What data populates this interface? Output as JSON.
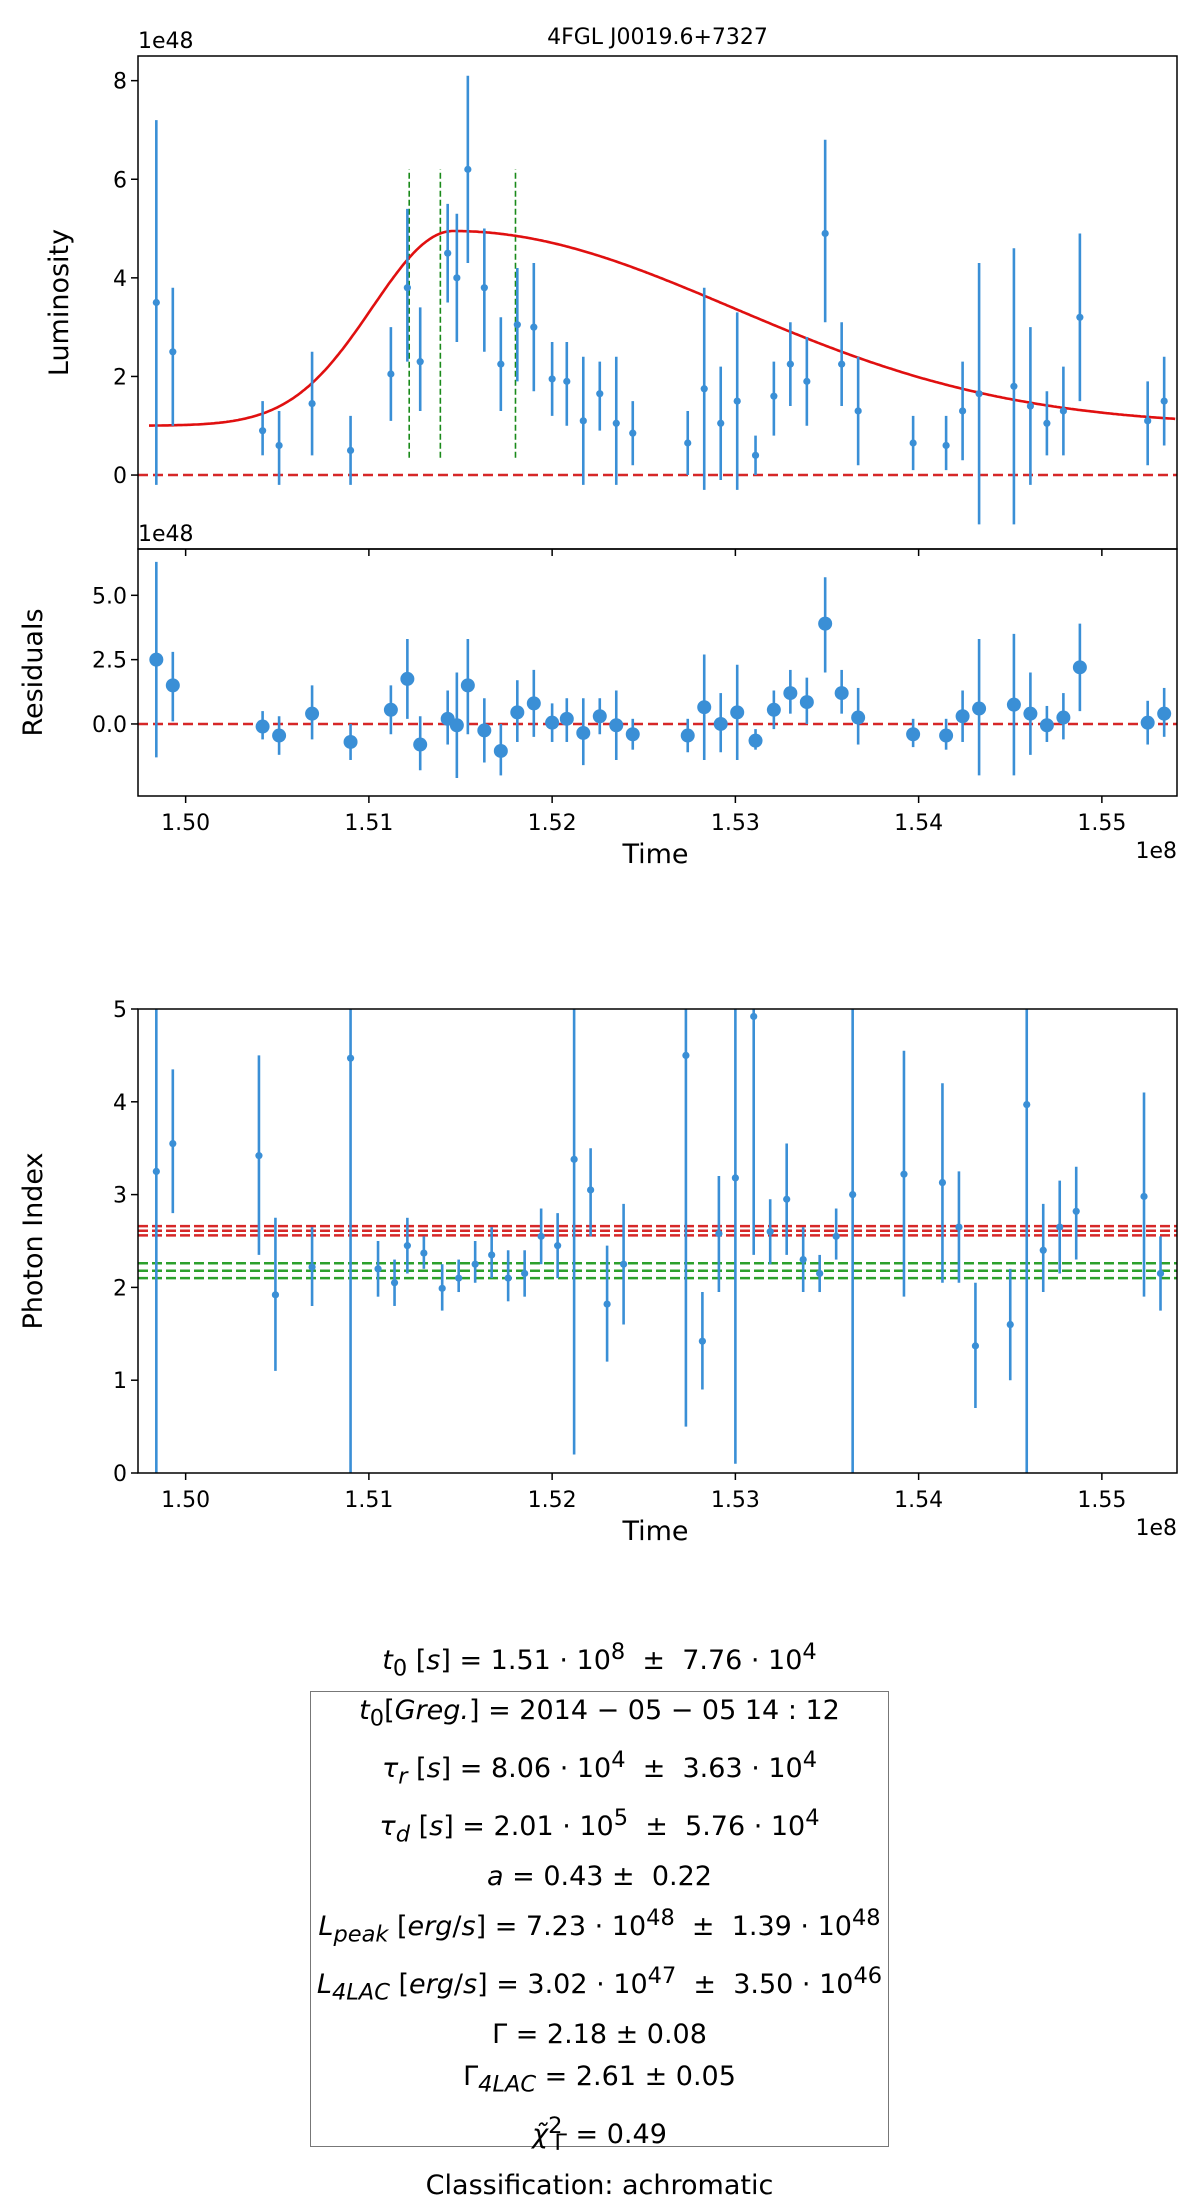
{
  "chart_data": [
    {
      "type": "scatter",
      "panel": "luminosity",
      "title": "4FGL J0019.6+7327",
      "xlabel": "Time",
      "ylabel": "Luminosity",
      "y_offset_label": "1e48",
      "ylim": [
        -1.5,
        8.5
      ],
      "xlim": [
        149740000.0,
        155410000.0
      ],
      "yticks": [
        0,
        2,
        4,
        6,
        8
      ],
      "yticklabels": [
        "0",
        "2",
        "4",
        "6",
        "8"
      ],
      "zero_line": 0,
      "flare_markers_x": [
        1.5122,
        1.5139,
        1.518
      ],
      "model_curve": {
        "name": "fit",
        "baseline": 1.0,
        "peak_time": 1.5146,
        "peak": 4.95,
        "tau_rise": 0.00806,
        "tau_decay": 0.0201,
        "x_start": 1.498,
        "x_end": 1.554
      },
      "points": [
        {
          "x": 1.4984,
          "y": 3.5,
          "lo": -0.2,
          "hi": 7.2
        },
        {
          "x": 1.4993,
          "y": 2.5,
          "lo": 1.0,
          "hi": 3.8
        },
        {
          "x": 1.5042,
          "y": 0.9,
          "lo": 0.4,
          "hi": 1.5
        },
        {
          "x": 1.5051,
          "y": 0.6,
          "lo": -0.2,
          "hi": 1.3
        },
        {
          "x": 1.5069,
          "y": 1.45,
          "lo": 0.4,
          "hi": 2.5
        },
        {
          "x": 1.509,
          "y": 0.5,
          "lo": -0.2,
          "hi": 1.2
        },
        {
          "x": 1.5112,
          "y": 2.05,
          "lo": 1.1,
          "hi": 3.0
        },
        {
          "x": 1.5121,
          "y": 3.8,
          "lo": 2.3,
          "hi": 5.4
        },
        {
          "x": 1.5128,
          "y": 2.3,
          "lo": 1.3,
          "hi": 3.4
        },
        {
          "x": 1.5143,
          "y": 4.5,
          "lo": 3.5,
          "hi": 5.5
        },
        {
          "x": 1.5148,
          "y": 4.0,
          "lo": 2.7,
          "hi": 5.3
        },
        {
          "x": 1.5154,
          "y": 6.2,
          "lo": 4.3,
          "hi": 8.1
        },
        {
          "x": 1.5163,
          "y": 3.8,
          "lo": 2.5,
          "hi": 5.0
        },
        {
          "x": 1.5172,
          "y": 2.25,
          "lo": 1.3,
          "hi": 3.2
        },
        {
          "x": 1.5181,
          "y": 3.05,
          "lo": 1.9,
          "hi": 4.2
        },
        {
          "x": 1.519,
          "y": 3.0,
          "lo": 1.7,
          "hi": 4.3
        },
        {
          "x": 1.52,
          "y": 1.95,
          "lo": 1.2,
          "hi": 2.7
        },
        {
          "x": 1.5208,
          "y": 1.9,
          "lo": 1.0,
          "hi": 2.7
        },
        {
          "x": 1.5217,
          "y": 1.1,
          "lo": -0.2,
          "hi": 2.4
        },
        {
          "x": 1.5226,
          "y": 1.65,
          "lo": 0.9,
          "hi": 2.3
        },
        {
          "x": 1.5235,
          "y": 1.05,
          "lo": -0.2,
          "hi": 2.4
        },
        {
          "x": 1.5244,
          "y": 0.85,
          "lo": 0.2,
          "hi": 1.5
        },
        {
          "x": 1.5274,
          "y": 0.65,
          "lo": 0.0,
          "hi": 1.3
        },
        {
          "x": 1.5283,
          "y": 1.75,
          "lo": -0.3,
          "hi": 3.8
        },
        {
          "x": 1.5292,
          "y": 1.05,
          "lo": -0.1,
          "hi": 2.2
        },
        {
          "x": 1.5301,
          "y": 1.5,
          "lo": -0.3,
          "hi": 3.3
        },
        {
          "x": 1.5311,
          "y": 0.4,
          "lo": 0.0,
          "hi": 0.8
        },
        {
          "x": 1.5321,
          "y": 1.6,
          "lo": 0.8,
          "hi": 2.3
        },
        {
          "x": 1.533,
          "y": 2.25,
          "lo": 1.4,
          "hi": 3.1
        },
        {
          "x": 1.5339,
          "y": 1.9,
          "lo": 1.0,
          "hi": 2.8
        },
        {
          "x": 1.5349,
          "y": 4.9,
          "lo": 3.1,
          "hi": 6.8
        },
        {
          "x": 1.5358,
          "y": 2.25,
          "lo": 1.4,
          "hi": 3.1
        },
        {
          "x": 1.5367,
          "y": 1.3,
          "lo": 0.2,
          "hi": 2.4
        },
        {
          "x": 1.5397,
          "y": 0.65,
          "lo": 0.1,
          "hi": 1.2
        },
        {
          "x": 1.5415,
          "y": 0.6,
          "lo": 0.1,
          "hi": 1.2
        },
        {
          "x": 1.5424,
          "y": 1.3,
          "lo": 0.3,
          "hi": 2.3
        },
        {
          "x": 1.5433,
          "y": 1.65,
          "lo": -1.0,
          "hi": 4.3
        },
        {
          "x": 1.5452,
          "y": 1.8,
          "lo": -1.0,
          "hi": 4.6
        },
        {
          "x": 1.5461,
          "y": 1.4,
          "lo": -0.2,
          "hi": 3.0
        },
        {
          "x": 1.547,
          "y": 1.05,
          "lo": 0.4,
          "hi": 1.7
        },
        {
          "x": 1.5479,
          "y": 1.3,
          "lo": 0.4,
          "hi": 2.2
        },
        {
          "x": 1.5488,
          "y": 3.2,
          "lo": 1.5,
          "hi": 4.9
        },
        {
          "x": 1.5525,
          "y": 1.1,
          "lo": 0.2,
          "hi": 1.9
        },
        {
          "x": 1.5534,
          "y": 1.5,
          "lo": 0.6,
          "hi": 2.4
        }
      ]
    },
    {
      "type": "scatter",
      "panel": "residuals",
      "xlabel": "Time",
      "ylabel": "Residuals",
      "y_offset_label": "1e48",
      "x_offset_label": "1e8",
      "ylim": [
        -2.8,
        6.8
      ],
      "xlim": [
        149740000.0,
        155410000.0
      ],
      "yticks": [
        0,
        2.5,
        5
      ],
      "yticklabels": [
        "0.0",
        "2.5",
        "5.0"
      ],
      "xticks": [
        1.5,
        1.51,
        1.52,
        1.53,
        1.54,
        1.55
      ],
      "xticklabels": [
        "1.50",
        "1.51",
        "1.52",
        "1.53",
        "1.54",
        "1.55"
      ],
      "zero_line": 0,
      "points": [
        {
          "x": 1.4984,
          "y": 2.5,
          "lo": -1.3,
          "hi": 6.3
        },
        {
          "x": 1.4993,
          "y": 1.5,
          "lo": 0.1,
          "hi": 2.8
        },
        {
          "x": 1.5042,
          "y": -0.1,
          "lo": -0.6,
          "hi": 0.5
        },
        {
          "x": 1.5051,
          "y": -0.45,
          "lo": -1.2,
          "hi": 0.3
        },
        {
          "x": 1.5069,
          "y": 0.4,
          "lo": -0.6,
          "hi": 1.5
        },
        {
          "x": 1.509,
          "y": -0.7,
          "lo": -1.4,
          "hi": 0.0
        },
        {
          "x": 1.5112,
          "y": 0.55,
          "lo": -0.4,
          "hi": 1.5
        },
        {
          "x": 1.5121,
          "y": 1.75,
          "lo": 0.2,
          "hi": 3.3
        },
        {
          "x": 1.5128,
          "y": -0.8,
          "lo": -1.8,
          "hi": 0.3
        },
        {
          "x": 1.5143,
          "y": 0.2,
          "lo": -0.8,
          "hi": 1.3
        },
        {
          "x": 1.5148,
          "y": -0.05,
          "lo": -2.1,
          "hi": 2.0
        },
        {
          "x": 1.5154,
          "y": 1.5,
          "lo": -0.4,
          "hi": 3.3
        },
        {
          "x": 1.5163,
          "y": -0.25,
          "lo": -1.5,
          "hi": 1.0
        },
        {
          "x": 1.5172,
          "y": -1.05,
          "lo": -2.0,
          "hi": 0.0
        },
        {
          "x": 1.5181,
          "y": 0.45,
          "lo": -0.7,
          "hi": 1.7
        },
        {
          "x": 1.519,
          "y": 0.8,
          "lo": -0.5,
          "hi": 2.1
        },
        {
          "x": 1.52,
          "y": 0.05,
          "lo": -0.7,
          "hi": 0.8
        },
        {
          "x": 1.5208,
          "y": 0.2,
          "lo": -0.7,
          "hi": 1.0
        },
        {
          "x": 1.5217,
          "y": -0.35,
          "lo": -1.6,
          "hi": 1.0
        },
        {
          "x": 1.5226,
          "y": 0.3,
          "lo": -0.4,
          "hi": 1.0
        },
        {
          "x": 1.5235,
          "y": -0.05,
          "lo": -1.4,
          "hi": 1.3
        },
        {
          "x": 1.5244,
          "y": -0.4,
          "lo": -1.0,
          "hi": 0.2
        },
        {
          "x": 1.5274,
          "y": -0.45,
          "lo": -1.1,
          "hi": 0.2
        },
        {
          "x": 1.5283,
          "y": 0.65,
          "lo": -1.4,
          "hi": 2.7
        },
        {
          "x": 1.5292,
          "y": 0.0,
          "lo": -1.1,
          "hi": 1.2
        },
        {
          "x": 1.5301,
          "y": 0.45,
          "lo": -1.4,
          "hi": 2.3
        },
        {
          "x": 1.5311,
          "y": -0.65,
          "lo": -1.0,
          "hi": -0.2
        },
        {
          "x": 1.5321,
          "y": 0.55,
          "lo": -0.2,
          "hi": 1.3
        },
        {
          "x": 1.533,
          "y": 1.2,
          "lo": 0.4,
          "hi": 2.1
        },
        {
          "x": 1.5339,
          "y": 0.85,
          "lo": 0.0,
          "hi": 1.8
        },
        {
          "x": 1.5349,
          "y": 3.9,
          "lo": 2.0,
          "hi": 5.7
        },
        {
          "x": 1.5358,
          "y": 1.2,
          "lo": 0.4,
          "hi": 2.1
        },
        {
          "x": 1.5367,
          "y": 0.25,
          "lo": -0.8,
          "hi": 1.4
        },
        {
          "x": 1.5397,
          "y": -0.4,
          "lo": -0.9,
          "hi": 0.2
        },
        {
          "x": 1.5415,
          "y": -0.45,
          "lo": -1.0,
          "hi": 0.2
        },
        {
          "x": 1.5424,
          "y": 0.3,
          "lo": -0.7,
          "hi": 1.3
        },
        {
          "x": 1.5433,
          "y": 0.6,
          "lo": -2.0,
          "hi": 3.3
        },
        {
          "x": 1.5452,
          "y": 0.75,
          "lo": -2.0,
          "hi": 3.5
        },
        {
          "x": 1.5461,
          "y": 0.4,
          "lo": -1.2,
          "hi": 2.0
        },
        {
          "x": 1.547,
          "y": -0.05,
          "lo": -0.7,
          "hi": 0.7
        },
        {
          "x": 1.5479,
          "y": 0.25,
          "lo": -0.6,
          "hi": 1.2
        },
        {
          "x": 1.5488,
          "y": 2.2,
          "lo": 0.5,
          "hi": 3.9
        },
        {
          "x": 1.5525,
          "y": 0.05,
          "lo": -0.8,
          "hi": 0.9
        },
        {
          "x": 1.5534,
          "y": 0.4,
          "lo": -0.5,
          "hi": 1.4
        }
      ]
    },
    {
      "type": "scatter",
      "panel": "photon-index",
      "xlabel": "Time",
      "ylabel": "Photon Index",
      "x_offset_label": "1e8",
      "ylim": [
        0,
        5
      ],
      "xlim": [
        149740000.0,
        155410000.0
      ],
      "yticks": [
        0,
        1,
        2,
        3,
        4,
        5
      ],
      "yticklabels": [
        "0",
        "1",
        "2",
        "3",
        "4",
        "5"
      ],
      "xticks": [
        1.5,
        1.51,
        1.52,
        1.53,
        1.54,
        1.55
      ],
      "xticklabels": [
        "1.50",
        "1.51",
        "1.52",
        "1.53",
        "1.54",
        "1.55"
      ],
      "reference_lines": [
        {
          "name": "Gamma_4LAC",
          "color": "#d62728",
          "values": [
            2.56,
            2.61,
            2.66
          ]
        },
        {
          "name": "Gamma",
          "color": "#2ca02c",
          "values": [
            2.1,
            2.18,
            2.26
          ]
        }
      ],
      "points": [
        {
          "x": 1.4984,
          "y": 3.25,
          "lo": 0.0,
          "hi": 5.0
        },
        {
          "x": 1.4993,
          "y": 3.55,
          "lo": 2.8,
          "hi": 4.35
        },
        {
          "x": 1.504,
          "y": 3.42,
          "lo": 2.35,
          "hi": 4.5
        },
        {
          "x": 1.5049,
          "y": 1.92,
          "lo": 1.1,
          "hi": 2.75
        },
        {
          "x": 1.5069,
          "y": 2.22,
          "lo": 1.8,
          "hi": 2.65
        },
        {
          "x": 1.509,
          "y": 4.47,
          "lo": 0.0,
          "hi": 5.0
        },
        {
          "x": 1.5105,
          "y": 2.2,
          "lo": 1.9,
          "hi": 2.5
        },
        {
          "x": 1.5114,
          "y": 2.05,
          "lo": 1.8,
          "hi": 2.3
        },
        {
          "x": 1.5121,
          "y": 2.45,
          "lo": 2.15,
          "hi": 2.75
        },
        {
          "x": 1.513,
          "y": 2.37,
          "lo": 2.2,
          "hi": 2.55
        },
        {
          "x": 1.514,
          "y": 1.99,
          "lo": 1.75,
          "hi": 2.25
        },
        {
          "x": 1.5149,
          "y": 2.1,
          "lo": 1.95,
          "hi": 2.3
        },
        {
          "x": 1.5158,
          "y": 2.25,
          "lo": 2.05,
          "hi": 2.5
        },
        {
          "x": 1.5167,
          "y": 2.35,
          "lo": 2.1,
          "hi": 2.65
        },
        {
          "x": 1.5176,
          "y": 2.1,
          "lo": 1.85,
          "hi": 2.4
        },
        {
          "x": 1.5185,
          "y": 2.15,
          "lo": 1.9,
          "hi": 2.4
        },
        {
          "x": 1.5194,
          "y": 2.55,
          "lo": 2.25,
          "hi": 2.85
        },
        {
          "x": 1.5203,
          "y": 2.45,
          "lo": 2.1,
          "hi": 2.8
        },
        {
          "x": 1.5212,
          "y": 3.38,
          "lo": 0.2,
          "hi": 5.0
        },
        {
          "x": 1.5221,
          "y": 3.05,
          "lo": 2.55,
          "hi": 3.5
        },
        {
          "x": 1.523,
          "y": 1.82,
          "lo": 1.2,
          "hi": 2.45
        },
        {
          "x": 1.5239,
          "y": 2.25,
          "lo": 1.6,
          "hi": 2.9
        },
        {
          "x": 1.5273,
          "y": 4.5,
          "lo": 0.5,
          "hi": 5.0
        },
        {
          "x": 1.5282,
          "y": 1.42,
          "lo": 0.9,
          "hi": 1.95
        },
        {
          "x": 1.5291,
          "y": 2.58,
          "lo": 1.95,
          "hi": 3.2
        },
        {
          "x": 1.53,
          "y": 3.18,
          "lo": 0.1,
          "hi": 5.0
        },
        {
          "x": 1.531,
          "y": 4.92,
          "lo": 2.35,
          "hi": 5.0
        },
        {
          "x": 1.5319,
          "y": 2.6,
          "lo": 2.25,
          "hi": 2.95
        },
        {
          "x": 1.5328,
          "y": 2.95,
          "lo": 2.35,
          "hi": 3.55
        },
        {
          "x": 1.5337,
          "y": 2.3,
          "lo": 1.95,
          "hi": 2.65
        },
        {
          "x": 1.5346,
          "y": 2.15,
          "lo": 1.95,
          "hi": 2.35
        },
        {
          "x": 1.5355,
          "y": 2.55,
          "lo": 2.3,
          "hi": 2.85
        },
        {
          "x": 1.5364,
          "y": 3.0,
          "lo": 0.0,
          "hi": 5.0
        },
        {
          "x": 1.5392,
          "y": 3.22,
          "lo": 1.9,
          "hi": 4.55
        },
        {
          "x": 1.5413,
          "y": 3.13,
          "lo": 2.05,
          "hi": 4.2
        },
        {
          "x": 1.5422,
          "y": 2.65,
          "lo": 2.05,
          "hi": 3.25
        },
        {
          "x": 1.5431,
          "y": 1.37,
          "lo": 0.7,
          "hi": 2.05
        },
        {
          "x": 1.545,
          "y": 1.6,
          "lo": 1.0,
          "hi": 2.2
        },
        {
          "x": 1.5459,
          "y": 3.97,
          "lo": 0.0,
          "hi": 5.0
        },
        {
          "x": 1.5468,
          "y": 2.4,
          "lo": 1.95,
          "hi": 2.9
        },
        {
          "x": 1.5477,
          "y": 2.65,
          "lo": 2.15,
          "hi": 3.15
        },
        {
          "x": 1.5486,
          "y": 2.82,
          "lo": 2.3,
          "hi": 3.3
        },
        {
          "x": 1.5523,
          "y": 2.98,
          "lo": 1.9,
          "hi": 4.1
        },
        {
          "x": 1.5532,
          "y": 2.15,
          "lo": 1.75,
          "hi": 2.55
        }
      ]
    }
  ],
  "results": {
    "lines": [
      {
        "id": "t0",
        "html": "<i>t</i><sub>0</sub> [<i>s</i>] = 1.51 · 10<sup>8</sup> &nbsp;± &nbsp;7.76 · 10<sup>4</sup>"
      },
      {
        "id": "t0-greg",
        "html": "<i>t</i><sub>0</sub>[<i>Greg.</i>] = 2014 − 05 − 05 14 : 12"
      },
      {
        "id": "tau-r",
        "html": "<i>τ<sub>r</sub></i> [<i>s</i>] = 8.06 · 10<sup>4</sup> &nbsp;± &nbsp;3.63 · 10<sup>4</sup>"
      },
      {
        "id": "tau-d",
        "html": "<i>τ<sub>d</sub></i> [<i>s</i>] = 2.01 · 10<sup>5</sup> &nbsp;± &nbsp;5.76 · 10<sup>4</sup>"
      },
      {
        "id": "a",
        "html": "<i>a</i> = 0.43 ± &nbsp;0.22"
      },
      {
        "id": "l-peak",
        "html": "<i>L<sub>peak</sub></i> [<i>erg</i>/<i>s</i>] = 7.23 · 10<sup>48</sup> &nbsp;± &nbsp;1.39 · 10<sup>48</sup>"
      },
      {
        "id": "l-4lac",
        "html": "<i>L<sub>4LAC</sub></i> [<i>erg</i>/<i>s</i>] = 3.02 · 10<sup>47</sup> &nbsp;± &nbsp;3.50 · 10<sup>46</sup>"
      },
      {
        "id": "gamma",
        "html": "Γ = 2.18 ± 0.08"
      },
      {
        "id": "gamma-4lac",
        "html": "Γ<sub><i>4LAC</i></sub> = 2.61 ± 0.05"
      },
      {
        "id": "chi2",
        "html": "<i>χ̃</i><sup>2</sup><sub style=\"margin-left:-8px\">Γ</sub> = 0.49"
      },
      {
        "id": "classification",
        "html": "Classification: achromatic"
      }
    ]
  },
  "colors": {
    "points": "#3a8fd6",
    "zero_line": "#d62728",
    "fit": "#e01010",
    "flare_marker": "#1a8a1a",
    "gamma_4lac": "#d62728",
    "gamma": "#1f7a1f"
  }
}
